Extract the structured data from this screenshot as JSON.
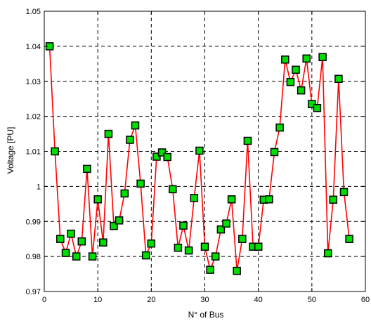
{
  "chart_data": {
    "type": "line",
    "xlabel": "N° of Bus",
    "ylabel": "Voltage [PU]",
    "xlim": [
      0,
      60
    ],
    "ylim": [
      0.97,
      1.05
    ],
    "x_ticks": [
      "0",
      "10",
      "20",
      "30",
      "40",
      "50",
      "60"
    ],
    "y_ticks": [
      "0.97",
      "0.98",
      "0.99",
      "1",
      "1.01",
      "1.02",
      "1.03",
      "1.04",
      "1.05"
    ],
    "grid": true,
    "line_color": "#ff0000",
    "marker_face": "#00dd00",
    "marker_edge": "#000000",
    "series": [
      {
        "x": [
          1,
          2,
          3,
          4,
          5,
          6,
          7,
          8,
          9,
          10,
          11,
          12,
          13,
          14,
          15,
          16,
          17,
          18,
          19,
          20,
          21,
          22,
          23,
          24,
          25,
          26,
          27,
          28,
          29,
          30,
          31,
          32,
          33,
          34,
          35,
          36,
          37,
          38,
          39,
          40,
          41,
          42,
          43,
          44,
          45,
          46,
          47,
          48,
          49,
          50,
          51,
          52,
          53,
          54,
          55,
          56,
          57
        ],
        "values": [
          1.04,
          1.01,
          0.985,
          0.981,
          0.9865,
          0.98,
          0.9843,
          1.005,
          0.98,
          0.9963,
          0.984,
          1.015,
          0.9887,
          0.9903,
          0.998,
          1.0133,
          1.0174,
          1.0008,
          0.9803,
          0.9837,
          1.0085,
          1.0097,
          1.0084,
          0.9992,
          0.9825,
          0.9888,
          0.9817,
          0.9967,
          1.0102,
          0.9828,
          0.9762,
          0.98,
          0.9877,
          0.9894,
          0.9963,
          0.9759,
          0.985,
          1.013,
          0.9828,
          0.9828,
          0.9962,
          0.9963,
          1.0098,
          1.0168,
          1.0362,
          1.0298,
          1.0333,
          1.0274,
          1.0365,
          1.0235,
          1.0224,
          1.0369,
          0.9809,
          0.9962,
          1.0307,
          0.9984,
          0.985
        ]
      }
    ]
  }
}
